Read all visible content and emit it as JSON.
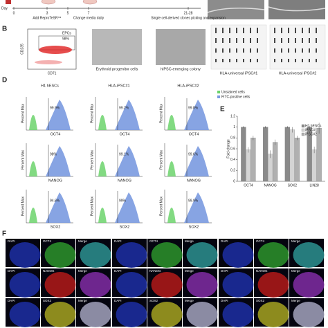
{
  "timeline": {
    "day_label": "Day",
    "days": [
      "0",
      "3",
      "5",
      "7",
      "21-28"
    ],
    "steps": [
      "Add ReproTeSR™",
      "Change media daily",
      "Single cell-derived clones picking and expansion"
    ]
  },
  "panel_b": {
    "label": "B",
    "flow": {
      "y_axis": "CD235",
      "x_axis": "CD71",
      "gate": "EPCs",
      "percent": "98%"
    },
    "captions": [
      "Erythroid progenitor cells",
      "hiPSC-emerging colony",
      "HLA-universal iPSC#1",
      "HLA-universal iPSC#2"
    ]
  },
  "panel_d": {
    "label": "D",
    "columns": [
      "H1 hESCs",
      "HLA-iPSC#1",
      "HLA-iPSC#2"
    ],
    "legend": [
      "Unstained cells",
      "FITC-positive cells"
    ],
    "y_axis": "Percent Max",
    "rows": [
      {
        "marker": "OCT4",
        "percents": [
          "99.9%",
          "99.2%",
          "99.8%"
        ]
      },
      {
        "marker": "NANOG",
        "percents": [
          "98%",
          "99.1%",
          "99.6%"
        ]
      },
      {
        "marker": "SOX2",
        "percents": [
          "94.6%",
          "99%",
          "99.9%"
        ]
      }
    ]
  },
  "chart_data": {
    "type": "bar",
    "label": "E",
    "ylabel": "Fold change",
    "categories": [
      "OCT4",
      "NANOG",
      "SOX2",
      "LIN28"
    ],
    "series": [
      {
        "name": "H1 hESCs",
        "color": "#8a8a8a",
        "values": [
          1,
          1,
          1,
          1
        ],
        "errors": [
          0.02,
          0.02,
          0.02,
          0.02
        ]
      },
      {
        "name": "iPSC#1",
        "color": "#d4d4d4",
        "values": [
          0.58,
          0.5,
          0.95,
          0.58
        ],
        "errors": [
          0.05,
          0.07,
          0.05,
          0.06
        ]
      },
      {
        "name": "iPSC#2",
        "color": "#b0b0b0",
        "values": [
          0.8,
          0.72,
          0.8,
          0.98
        ],
        "errors": [
          0.04,
          0.05,
          0.04,
          0.1
        ]
      }
    ],
    "ylim": [
      0,
      1.2
    ],
    "yticks": [
      0,
      0.2,
      0.4,
      0.6,
      0.8,
      1,
      1.2
    ]
  },
  "panel_f": {
    "label": "F",
    "channels": [
      [
        "DAPI",
        "OCT4",
        "Merge"
      ],
      [
        "DAPI",
        "NANOG",
        "Merge"
      ],
      [
        "DAPI",
        "SOX2",
        "Merge"
      ]
    ]
  }
}
